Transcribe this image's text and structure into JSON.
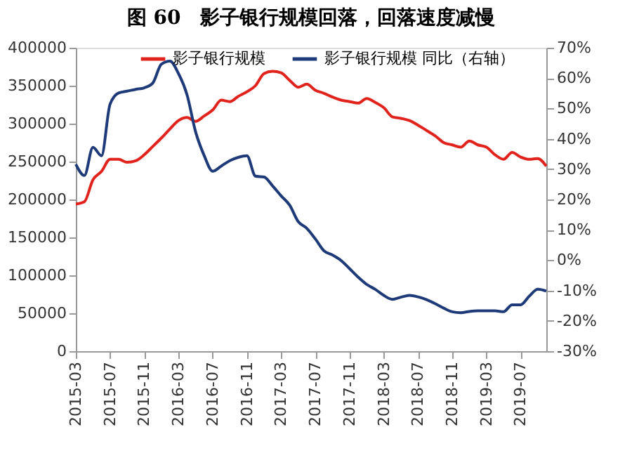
{
  "chart_data": {
    "type": "line",
    "title": "图 60　影子银行规模回落，回落速度减慢",
    "categories": [
      "2015-03",
      null,
      null,
      null,
      "2015-07",
      null,
      null,
      null,
      "2015-11",
      null,
      null,
      null,
      "2016-03",
      null,
      null,
      null,
      "2016-07",
      null,
      null,
      null,
      "2016-11",
      null,
      null,
      null,
      "2017-03",
      null,
      null,
      null,
      "2017-07",
      null,
      null,
      null,
      "2017-11",
      null,
      null,
      null,
      "2018-03",
      null,
      null,
      null,
      "2018-07",
      null,
      null,
      null,
      "2018-11",
      null,
      null,
      null,
      "2019-03",
      null,
      null,
      null,
      "2019-07",
      null,
      null,
      null
    ],
    "series": [
      {
        "name": "影子银行规模",
        "color": "#e0231c",
        "values": [
          194000,
          197000,
          226000,
          237000,
          253000,
          253000,
          249000,
          251000,
          259000,
          270000,
          281000,
          293000,
          304000,
          308000,
          303000,
          310000,
          318000,
          331000,
          329000,
          336000,
          342000,
          350000,
          366000,
          369000,
          367000,
          357000,
          348000,
          352000,
          344000,
          340000,
          335000,
          331000,
          329000,
          327000,
          333000,
          328000,
          321000,
          309000,
          307000,
          304000,
          298000,
          291000,
          284000,
          275000,
          272000,
          269000,
          277000,
          272000,
          269000,
          259000,
          253000,
          262000,
          256000,
          253000,
          254000,
          244000
        ]
      },
      {
        "name": "影子银行规模 同比（右轴）",
        "color": "#1f3a78",
        "axis": "y2",
        "values": [
          31.6,
          27.9,
          37.2,
          34.4,
          51.4,
          55.1,
          55.7,
          56.3,
          56.8,
          58.4,
          64.6,
          65.6,
          61.5,
          54.5,
          42.3,
          34.5,
          29.3,
          31.0,
          32.8,
          33.9,
          34.4,
          27.7,
          27.4,
          24.5,
          21.2,
          18.1,
          12.7,
          10.5,
          7.0,
          3.1,
          1.7,
          -0.1,
          -2.8,
          -5.6,
          -8.0,
          -9.6,
          -11.6,
          -12.9,
          -12.2,
          -11.6,
          -12.1,
          -13.0,
          -14.3,
          -15.8,
          -17.0,
          -17.3,
          -16.9,
          -16.7,
          -16.7,
          -16.7,
          -17.0,
          -14.7,
          -14.7,
          -11.9,
          -9.6,
          -10.2
        ]
      }
    ],
    "ylim": [
      0,
      400000
    ],
    "yticks": [
      0,
      50000,
      100000,
      150000,
      200000,
      250000,
      300000,
      350000,
      400000
    ],
    "y2lim": [
      -30,
      70
    ],
    "y2ticks": [
      {
        "value": -30,
        "label": "-30%"
      },
      {
        "value": -20,
        "label": "-20%"
      },
      {
        "value": -10,
        "label": "-10%"
      },
      {
        "value": 0,
        "label": "0%"
      },
      {
        "value": 10,
        "label": "10%"
      },
      {
        "value": 20,
        "label": "20%"
      },
      {
        "value": 30,
        "label": "30%"
      },
      {
        "value": 40,
        "label": "40%"
      },
      {
        "value": 50,
        "label": "50%"
      },
      {
        "value": 60,
        "label": "60%"
      },
      {
        "value": 70,
        "label": "70%"
      }
    ],
    "grid": false,
    "legend": "top"
  }
}
